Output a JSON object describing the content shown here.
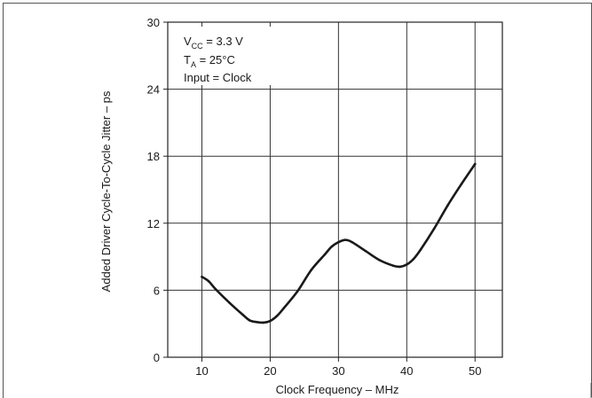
{
  "chart_data": {
    "type": "line",
    "xlabel": "Clock Frequency –   MHz",
    "ylabel": "Added Driver Cycle-To-Cycle Jitter – ps",
    "xlim": [
      5,
      54
    ],
    "ylim": [
      0,
      30
    ],
    "xticks": [
      10,
      20,
      30,
      40,
      50
    ],
    "yticks": [
      0,
      6,
      12,
      18,
      24,
      30
    ],
    "grid": true,
    "legend": "none",
    "annotation": {
      "line1_main": "V",
      "line1_sub": "CC",
      "line1_rest": " = 3.3 V",
      "line2_main": "T",
      "line2_sub": "A",
      "line2_rest": " = 25°C",
      "line3": "Input = Clock",
      "placement": "top-left"
    },
    "series": [
      {
        "x": [
          10,
          11,
          12,
          14,
          16,
          17,
          18,
          19,
          20,
          21,
          22,
          24,
          26,
          28,
          29,
          30,
          31,
          32,
          34,
          36,
          38,
          39,
          40,
          41,
          42,
          44,
          46,
          48,
          50
        ],
        "values": [
          7.2,
          6.8,
          6.1,
          4.9,
          3.8,
          3.3,
          3.15,
          3.1,
          3.25,
          3.7,
          4.4,
          5.9,
          7.8,
          9.2,
          9.9,
          10.3,
          10.5,
          10.3,
          9.5,
          8.7,
          8.2,
          8.1,
          8.3,
          8.8,
          9.6,
          11.5,
          13.6,
          15.5,
          17.3
        ],
        "color": "#1a1a1a"
      }
    ]
  }
}
